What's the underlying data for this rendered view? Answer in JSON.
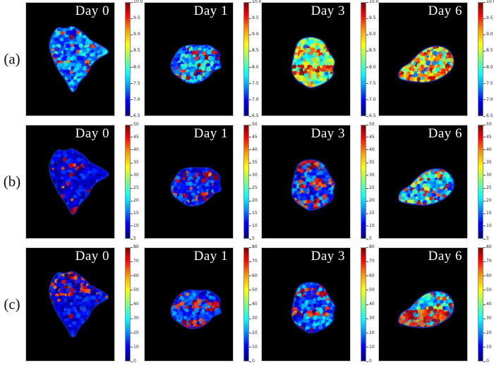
{
  "chart_data": {
    "type": "heatmap",
    "colormap": "jet",
    "grid": {
      "rows": 3,
      "cols": 4
    },
    "panel_background": "#000000",
    "title_color": "#ffffff",
    "column_titles": [
      "Day 0",
      "Day 1",
      "Day 3",
      "Day 6"
    ],
    "rows": [
      {
        "label": "(a)",
        "colorbar": {
          "min": 6.5,
          "max": 10.0,
          "step": 0.5,
          "ticks": [
            "10.0",
            "9.5",
            "9.0",
            "8.5",
            "8.0",
            "7.5",
            "7.0",
            "6.5"
          ]
        },
        "panels": [
          {
            "title": "Day 0",
            "appearance": {
              "shape": "day0",
              "base": 0.22,
              "spread": 0.4,
              "hot": 0.08,
              "cold": 0,
              "bias": "uniform",
              "seed": 11
            }
          },
          {
            "title": "Day 1",
            "appearance": {
              "shape": "day1",
              "base": 0.22,
              "spread": 0.42,
              "hot": 0.16,
              "cold": 0,
              "bias": "bands",
              "seed": 23
            }
          },
          {
            "title": "Day 3",
            "appearance": {
              "shape": "day3",
              "base": 0.46,
              "spread": 0.42,
              "hot": 0.28,
              "cold": 0.08,
              "bias": "bands",
              "seed": 37
            }
          },
          {
            "title": "Day 6",
            "appearance": {
              "shape": "day6",
              "base": 0.56,
              "spread": 0.46,
              "hot": 0.4,
              "cold": 0.16,
              "bias": "uniform",
              "seed": 41
            }
          }
        ]
      },
      {
        "label": "(b)",
        "colorbar": {
          "min": 5,
          "max": 50,
          "step": 5,
          "ticks": [
            "50",
            "45",
            "40",
            "35",
            "30",
            "25",
            "20",
            "15",
            "10",
            "5"
          ]
        },
        "panels": [
          {
            "title": "Day 0",
            "appearance": {
              "shape": "day0",
              "base": 0.07,
              "spread": 0.22,
              "hot": 0.14,
              "cold": 0,
              "bias": "edges",
              "seed": 53
            }
          },
          {
            "title": "Day 1",
            "appearance": {
              "shape": "day1",
              "base": 0.12,
              "spread": 0.3,
              "hot": 0.26,
              "cold": 0,
              "bias": "bands",
              "seed": 67
            }
          },
          {
            "title": "Day 3",
            "appearance": {
              "shape": "day3",
              "base": 0.16,
              "spread": 0.36,
              "hot": 0.33,
              "cold": 0,
              "bias": "bands",
              "seed": 71
            }
          },
          {
            "title": "Day 6",
            "appearance": {
              "shape": "day6",
              "base": 0.3,
              "spread": 0.5,
              "hot": 0.38,
              "cold": 0.14,
              "bias": "uniform",
              "seed": 83
            }
          }
        ]
      },
      {
        "label": "(c)",
        "colorbar": {
          "min": 0,
          "max": 80,
          "step": 10,
          "ticks": [
            "80",
            "70",
            "60",
            "50",
            "40",
            "30",
            "20",
            "10",
            "0"
          ]
        },
        "panels": [
          {
            "title": "Day 0",
            "appearance": {
              "shape": "day0",
              "base": 0.07,
              "spread": 0.24,
              "hot": 0.14,
              "cold": 0,
              "bias": "top",
              "seed": 97
            }
          },
          {
            "title": "Day 1",
            "appearance": {
              "shape": "day1",
              "base": 0.13,
              "spread": 0.32,
              "hot": 0.26,
              "cold": 0,
              "bias": "bands",
              "seed": 109
            }
          },
          {
            "title": "Day 3",
            "appearance": {
              "shape": "day3",
              "base": 0.16,
              "spread": 0.36,
              "hot": 0.32,
              "cold": 0,
              "bias": "bands",
              "seed": 113
            }
          },
          {
            "title": "Day 6",
            "appearance": {
              "shape": "day6",
              "base": 0.32,
              "spread": 0.46,
              "hot": 0.48,
              "cold": 0.12,
              "bias": "bottom",
              "seed": 127
            }
          }
        ]
      }
    ],
    "shapes": {
      "day0": [
        [
          0.3,
          0.27
        ],
        [
          0.36,
          0.21
        ],
        [
          0.44,
          0.23
        ],
        [
          0.52,
          0.2
        ],
        [
          0.6,
          0.24
        ],
        [
          0.66,
          0.27
        ],
        [
          0.72,
          0.33
        ],
        [
          0.86,
          0.38
        ],
        [
          0.96,
          0.44
        ],
        [
          0.82,
          0.49
        ],
        [
          0.74,
          0.55
        ],
        [
          0.7,
          0.63
        ],
        [
          0.6,
          0.7
        ],
        [
          0.53,
          0.82
        ],
        [
          0.46,
          0.7
        ],
        [
          0.38,
          0.62
        ],
        [
          0.3,
          0.5
        ],
        [
          0.25,
          0.38
        ]
      ],
      "day1": [
        [
          0.36,
          0.44
        ],
        [
          0.42,
          0.39
        ],
        [
          0.52,
          0.37
        ],
        [
          0.62,
          0.38
        ],
        [
          0.72,
          0.37
        ],
        [
          0.8,
          0.41
        ],
        [
          0.86,
          0.45
        ],
        [
          0.84,
          0.52
        ],
        [
          0.88,
          0.58
        ],
        [
          0.78,
          0.6
        ],
        [
          0.72,
          0.66
        ],
        [
          0.62,
          0.71
        ],
        [
          0.5,
          0.72
        ],
        [
          0.4,
          0.67
        ],
        [
          0.31,
          0.62
        ],
        [
          0.29,
          0.54
        ],
        [
          0.33,
          0.48
        ]
      ],
      "day3": [
        [
          0.42,
          0.33
        ],
        [
          0.52,
          0.3
        ],
        [
          0.62,
          0.31
        ],
        [
          0.7,
          0.34
        ],
        [
          0.74,
          0.4
        ],
        [
          0.78,
          0.46
        ],
        [
          0.84,
          0.52
        ],
        [
          0.8,
          0.58
        ],
        [
          0.82,
          0.64
        ],
        [
          0.74,
          0.7
        ],
        [
          0.64,
          0.74
        ],
        [
          0.54,
          0.76
        ],
        [
          0.46,
          0.72
        ],
        [
          0.38,
          0.68
        ],
        [
          0.33,
          0.6
        ],
        [
          0.35,
          0.5
        ],
        [
          0.38,
          0.4
        ]
      ],
      "day6": [
        [
          0.22,
          0.62
        ],
        [
          0.26,
          0.57
        ],
        [
          0.34,
          0.54
        ],
        [
          0.4,
          0.49
        ],
        [
          0.46,
          0.44
        ],
        [
          0.54,
          0.4
        ],
        [
          0.64,
          0.38
        ],
        [
          0.74,
          0.39
        ],
        [
          0.82,
          0.44
        ],
        [
          0.86,
          0.52
        ],
        [
          0.82,
          0.6
        ],
        [
          0.74,
          0.65
        ],
        [
          0.64,
          0.69
        ],
        [
          0.52,
          0.71
        ],
        [
          0.4,
          0.7
        ],
        [
          0.3,
          0.69
        ],
        [
          0.22,
          0.67
        ]
      ]
    }
  }
}
